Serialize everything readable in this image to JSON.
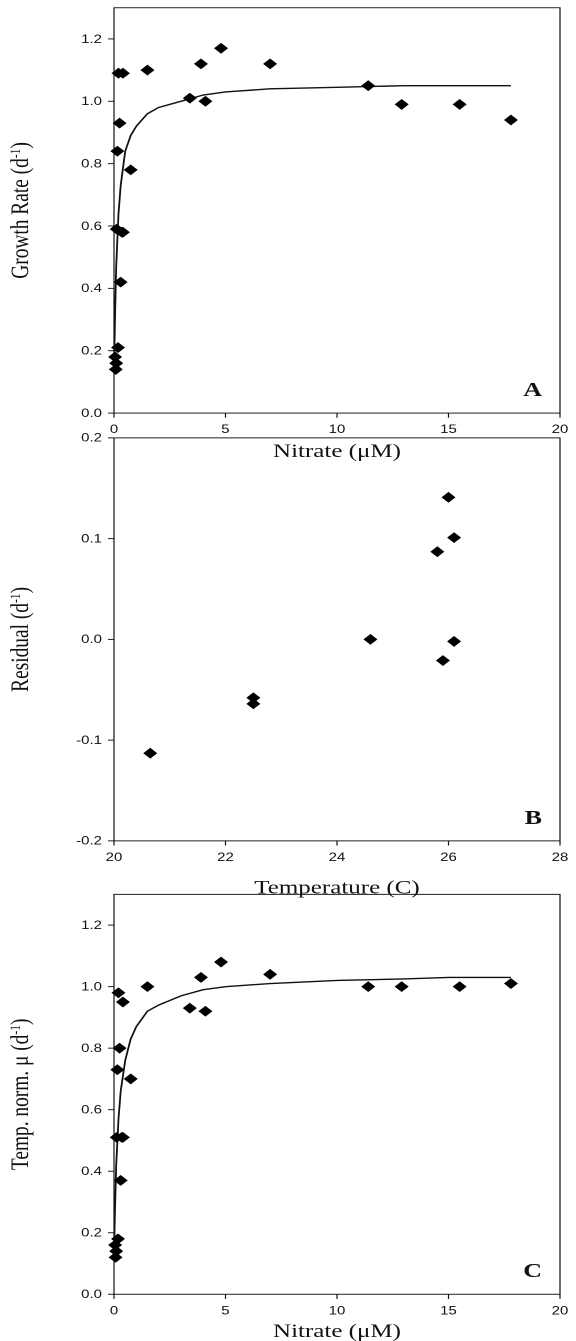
{
  "chart_data": [
    {
      "type": "scatter",
      "panel_label": "A",
      "xlabel": "Nitrate (μM)",
      "ylabel": "Growth Rate (d",
      "ylabel_sup": "-1",
      "ylabel_end": ")",
      "xlim": [
        0,
        20
      ],
      "ylim": [
        0,
        1.3
      ],
      "xticks": [
        "0",
        "5",
        "10",
        "15",
        "20"
      ],
      "yticks": [
        "0.0",
        "0.2",
        "0.4",
        "0.6",
        "0.8",
        "1.0",
        "1.2"
      ],
      "grid": false,
      "x": [
        0.05,
        0.08,
        0.1,
        0.12,
        0.15,
        0.18,
        0.2,
        0.25,
        0.3,
        0.35,
        0.4,
        0.4,
        0.75,
        1.5,
        3.4,
        3.9,
        4.1,
        4.8,
        7.0,
        11.4,
        12.9,
        15.5,
        17.8
      ],
      "y": [
        0.18,
        0.14,
        0.16,
        0.59,
        0.84,
        0.21,
        1.09,
        0.93,
        0.42,
        0.58,
        0.58,
        1.09,
        0.78,
        1.1,
        1.01,
        1.12,
        1.0,
        1.17,
        1.12,
        1.05,
        0.99,
        0.99,
        0.94
      ],
      "fit_x": [
        0,
        0.05,
        0.1,
        0.2,
        0.3,
        0.5,
        0.75,
        1,
        1.5,
        2,
        3,
        4,
        5,
        7,
        10,
        13,
        15,
        17.8
      ],
      "fit_y": [
        0.14,
        0.32,
        0.47,
        0.64,
        0.73,
        0.84,
        0.89,
        0.92,
        0.96,
        0.98,
        1.0,
        1.02,
        1.03,
        1.04,
        1.045,
        1.05,
        1.05,
        1.05
      ]
    },
    {
      "type": "scatter",
      "panel_label": "B",
      "xlabel": "Temperature (C)",
      "ylabel": "Residual (d",
      "ylabel_sup": "-1",
      "ylabel_end": ")",
      "xlim": [
        20,
        28
      ],
      "ylim": [
        -0.2,
        0.2
      ],
      "xticks": [
        "20",
        "22",
        "24",
        "26",
        "28"
      ],
      "yticks": [
        "-0.2",
        "-0.1",
        "0.0",
        "0.1",
        "0.2"
      ],
      "grid": false,
      "x": [
        20.65,
        22.5,
        22.5,
        24.6,
        25.8,
        25.9,
        26.0,
        26.1,
        26.1
      ],
      "y": [
        -0.113,
        -0.058,
        -0.064,
        0.0,
        0.087,
        -0.021,
        0.141,
        0.101,
        -0.002
      ]
    },
    {
      "type": "scatter",
      "panel_label": "C",
      "xlabel": "Nitrate (μM)",
      "ylabel": "Temp. norm. μ  (d",
      "ylabel_sup": "-1",
      "ylabel_end": ")",
      "xlim": [
        0,
        20
      ],
      "ylim": [
        0,
        1.3
      ],
      "xticks": [
        "0",
        "5",
        "10",
        "15",
        "20"
      ],
      "yticks": [
        "0.0",
        "0.2",
        "0.4",
        "0.6",
        "0.8",
        "1.0",
        "1.2"
      ],
      "grid": false,
      "x": [
        0.05,
        0.07,
        0.1,
        0.12,
        0.15,
        0.18,
        0.2,
        0.25,
        0.3,
        0.35,
        0.4,
        0.4,
        0.75,
        1.5,
        3.4,
        3.9,
        4.1,
        4.8,
        7.0,
        11.4,
        12.9,
        15.5,
        17.8
      ],
      "y": [
        0.16,
        0.12,
        0.14,
        0.51,
        0.73,
        0.18,
        0.98,
        0.8,
        0.37,
        0.51,
        0.51,
        0.95,
        0.7,
        1.0,
        0.93,
        1.03,
        0.92,
        1.08,
        1.04,
        1.0,
        1.0,
        1.0,
        1.01
      ],
      "fit_x": [
        0,
        0.05,
        0.1,
        0.2,
        0.3,
        0.5,
        0.75,
        1,
        1.5,
        2,
        3,
        4,
        5,
        7,
        10,
        13,
        15,
        17.8
      ],
      "fit_y": [
        0.13,
        0.29,
        0.42,
        0.57,
        0.66,
        0.76,
        0.83,
        0.87,
        0.92,
        0.94,
        0.97,
        0.99,
        1.0,
        1.01,
        1.02,
        1.025,
        1.03,
        1.03
      ]
    }
  ]
}
